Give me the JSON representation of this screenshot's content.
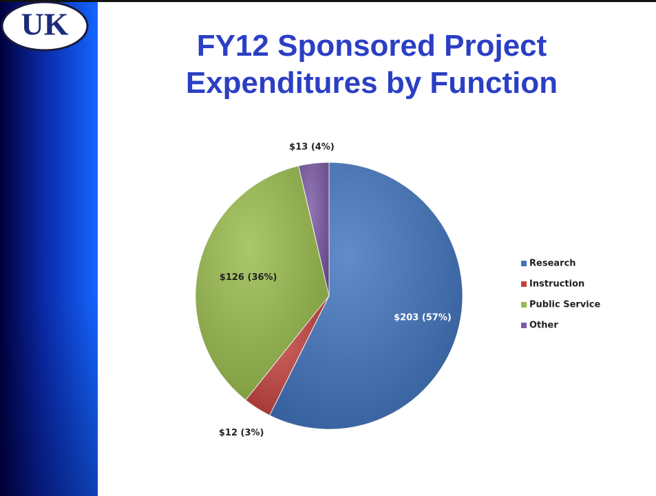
{
  "logo": "UK",
  "chart_data": {
    "type": "pie",
    "title": "FY12 Sponsored Project Expenditures by Function",
    "categories": [
      "Research",
      "Instruction",
      "Public Service",
      "Other"
    ],
    "values": [
      203,
      12,
      126,
      13
    ],
    "value_labels": [
      "$203 (57%)",
      "$12 (3%)",
      "$126 (36%)",
      "$13 (4%)"
    ],
    "colors": [
      "#3f73bd",
      "#c3403c",
      "#97bb4a",
      "#7a58a3"
    ],
    "legend": "right"
  }
}
